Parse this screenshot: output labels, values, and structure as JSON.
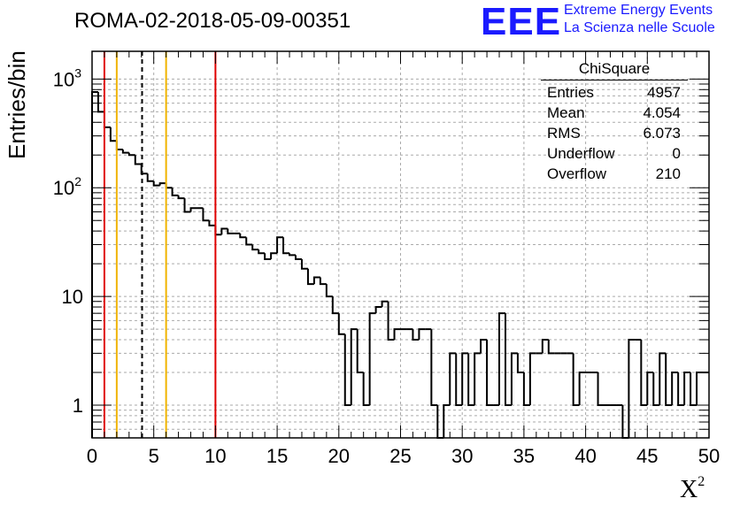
{
  "title": "ROMA-02-2018-05-09-00351",
  "logo": {
    "mark": "EEE",
    "line1": "Extreme Energy Events",
    "line2": "La Scienza nelle Scuole",
    "color": "#1a1aff"
  },
  "stats": {
    "title": "ChiSquare",
    "rows": [
      {
        "label": "Entries",
        "value": "4957"
      },
      {
        "label": "Mean",
        "value": "4.054"
      },
      {
        "label": "RMS",
        "value": "6.073"
      },
      {
        "label": "Underflow",
        "value": "0"
      },
      {
        "label": "Overflow",
        "value": "210"
      }
    ]
  },
  "chart_data": {
    "type": "histogram",
    "title": "ROMA-02-2018-05-09-00351",
    "xlabel": "X",
    "xlabel_sup": "2",
    "ylabel": "Entries/bin",
    "xlim": [
      0,
      50
    ],
    "ylim": [
      0.5,
      1800
    ],
    "yscale": "log",
    "grid": true,
    "bin_width": 0.5,
    "x_ticks": [
      "0",
      "5",
      "10",
      "15",
      "20",
      "25",
      "30",
      "35",
      "40",
      "45",
      "50"
    ],
    "y_ticks": [
      {
        "value": 1,
        "label": "1"
      },
      {
        "value": 10,
        "label": "10"
      },
      {
        "value": 100,
        "label": "10",
        "exp": "2"
      },
      {
        "value": 1000,
        "label": "10",
        "exp": "3"
      }
    ],
    "counts": [
      760,
      500,
      360,
      270,
      225,
      210,
      200,
      165,
      135,
      115,
      105,
      110,
      100,
      85,
      80,
      60,
      65,
      65,
      50,
      45,
      37,
      42,
      38,
      38,
      35,
      30,
      27,
      25,
      22,
      25,
      35,
      25,
      24,
      22,
      18,
      13,
      15,
      13,
      10,
      7,
      4.5,
      1,
      5,
      2,
      1,
      7,
      8,
      9,
      4,
      5,
      5,
      5,
      4,
      5,
      5,
      1,
      0,
      1,
      3,
      1,
      3,
      1,
      3,
      4,
      1,
      1,
      7,
      1,
      3,
      2,
      1,
      3,
      3,
      4,
      3,
      3,
      3,
      3,
      1,
      2,
      2,
      2,
      1,
      1,
      1,
      1,
      0,
      4,
      4,
      1,
      2,
      1,
      3,
      1,
      2,
      1,
      2,
      1,
      2,
      2
    ],
    "vlines": [
      {
        "x": 1,
        "color": "#e00000",
        "style": "solid"
      },
      {
        "x": 2,
        "color": "#f0b400",
        "style": "solid"
      },
      {
        "x": 4.054,
        "color": "#000000",
        "style": "dashed"
      },
      {
        "x": 6,
        "color": "#f0b400",
        "style": "solid"
      },
      {
        "x": 10,
        "color": "#e00000",
        "style": "solid"
      }
    ]
  }
}
